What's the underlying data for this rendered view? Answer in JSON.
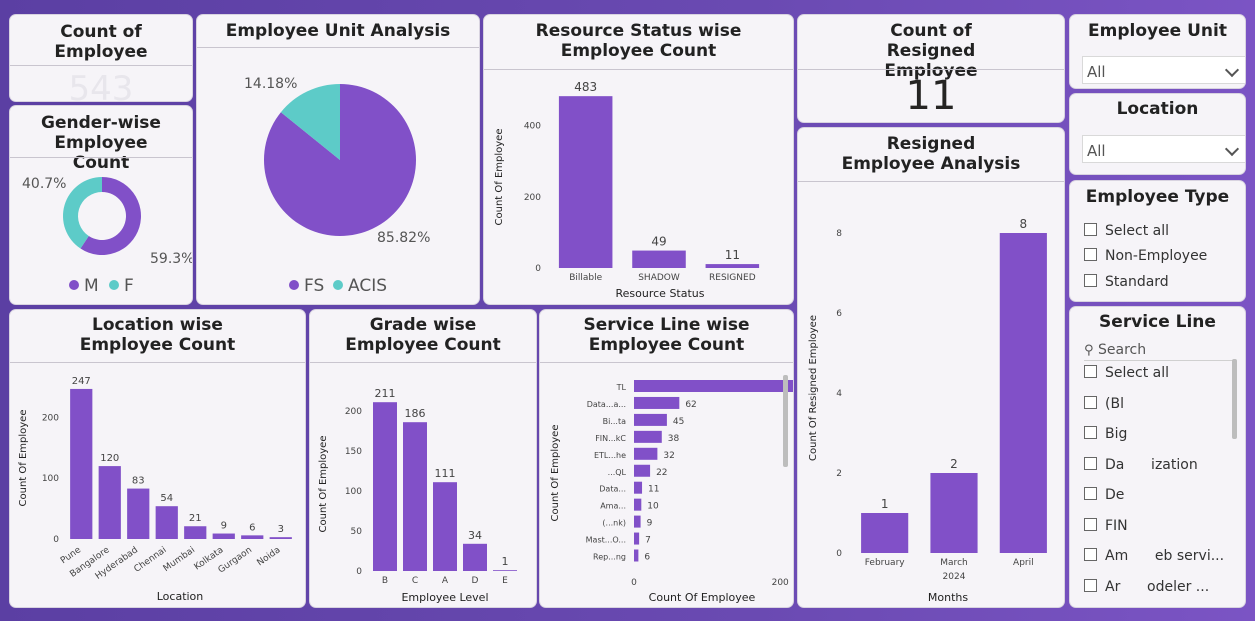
{
  "colors": {
    "primary": "#8150c8",
    "accent": "#5dcbc8",
    "title": "#222222"
  },
  "kpi_employee": {
    "title": "Count of Employee",
    "value": "543"
  },
  "kpi_resigned": {
    "title": "Count of Resigned Employee",
    "value": "11"
  },
  "slicers": {
    "unit": {
      "title": "Employee Unit",
      "value": "All"
    },
    "location": {
      "title": "Location",
      "value": "All"
    },
    "type": {
      "title": "Employee Type",
      "items": [
        "Select all",
        "Non-Employee",
        "Standard"
      ]
    },
    "service_line": {
      "title": "Service Line",
      "search_placeholder": "Search",
      "items": [
        "Select all",
        "(Bl",
        "Big",
        "Da      ization",
        "De",
        "FIN",
        "Am      eb servi...",
        "Ar      odeler ..."
      ]
    }
  },
  "chart_data": [
    {
      "id": "gender",
      "type": "pie",
      "title": "Gender-wise Employee Count",
      "donut": true,
      "categories": [
        "M",
        "F"
      ],
      "values": [
        59.3,
        40.7
      ],
      "data_labels": [
        "59.3%",
        "40.7%"
      ],
      "legend": "bottom"
    },
    {
      "id": "unit",
      "type": "pie",
      "title": "Employee Unit Analysis",
      "categories": [
        "FS",
        "ACIS"
      ],
      "values": [
        85.82,
        14.18
      ],
      "data_labels": [
        "85.82%",
        "14.18%"
      ],
      "legend": "bottom"
    },
    {
      "id": "status",
      "type": "bar",
      "title": "Resource Status wise Employee Count",
      "categories": [
        "Billable",
        "SHADOW",
        "RESIGNED"
      ],
      "values": [
        483,
        49,
        11
      ],
      "xlabel": "Resource Status",
      "ylabel": "Count Of Employee",
      "yticks": [
        0,
        200,
        400
      ],
      "ylim": [
        0,
        520
      ]
    },
    {
      "id": "resigned",
      "type": "bar",
      "title": "Resigned Employee Analysis",
      "categories": [
        "February",
        "March",
        "April"
      ],
      "values": [
        1,
        2,
        8
      ],
      "xlabel": "Months",
      "x_sublabel": "2024",
      "ylabel": "Count Of Resigned Employee",
      "yticks": [
        0,
        2,
        4,
        6,
        8
      ],
      "ylim": [
        0,
        8.6
      ]
    },
    {
      "id": "location",
      "type": "bar",
      "title": "Location wise Employee Count",
      "categories": [
        "Pune",
        "Bangalore",
        "Hyderabad",
        "Chennai",
        "Mumbai",
        "Kolkata",
        "Gurgaon",
        "Noida"
      ],
      "values": [
        247,
        120,
        83,
        54,
        21,
        9,
        6,
        3
      ],
      "xlabel": "Location",
      "ylabel": "Count Of Employee",
      "yticks": [
        0,
        100,
        200
      ],
      "ylim": [
        0,
        265
      ]
    },
    {
      "id": "grade",
      "type": "bar",
      "title": "Grade wise Employee Count",
      "categories": [
        "B",
        "C",
        "A",
        "D",
        "E"
      ],
      "values": [
        211,
        186,
        111,
        34,
        1
      ],
      "xlabel": "Employee Level",
      "ylabel": "Count Of Employee",
      "yticks": [
        0,
        50,
        100,
        150,
        200
      ],
      "ylim": [
        0,
        225
      ]
    },
    {
      "id": "service",
      "type": "bar",
      "orientation": "horizontal",
      "title": "Service Line wise Employee Count",
      "categories": [
        "TL",
        "Data...a...",
        "Bi...ta",
        "FIN...kC",
        "ETL...he",
        "...QL",
        "Data...",
        "Ama...",
        "(...nk)",
        "Mast...O...",
        "Rep...ng"
      ],
      "values": [
        269,
        62,
        45,
        38,
        32,
        22,
        11,
        10,
        9,
        7,
        6
      ],
      "xlabel": "Count Of Employee",
      "ylabel": "Count Of Employee",
      "xticks": [
        0,
        200
      ],
      "xlim": [
        0,
        290
      ]
    }
  ]
}
